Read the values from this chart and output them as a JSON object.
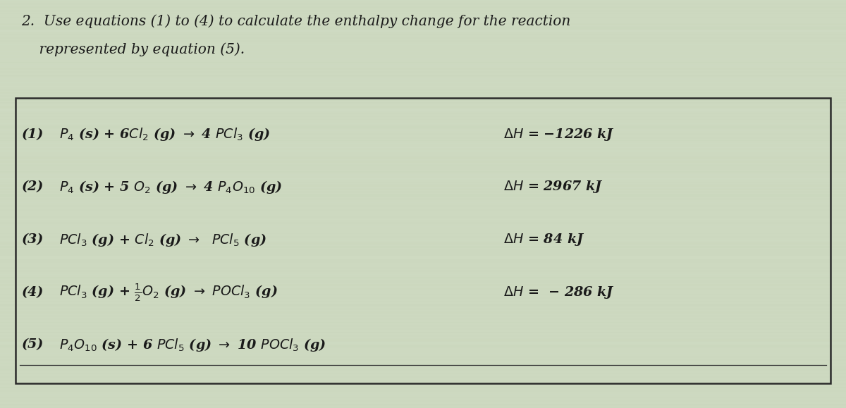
{
  "background_color": "#cdd9c0",
  "title_text_line1": "2.  Use equations (1) to (4) to calculate the enthalpy change for the reaction",
  "title_text_line2": "    represented by equation (5).",
  "title_fontsize": 14.5,
  "box_edge_color": "#2a2a2a",
  "text_color": "#1a1a1a",
  "eq_fontsize": 13.8,
  "equations": [
    {
      "label": "(1)",
      "lhs": "$P_4$ (s) + 6$Cl_2$ (g) $\\rightarrow$ 4 $PCl_3$ (g)",
      "rhs": "$\\Delta H$ = −1226 kJ"
    },
    {
      "label": "(2)",
      "lhs": "$P_4$ (s) + 5 $O_2$ (g) $\\rightarrow$ 4 $P_4O_{10}$ (g)",
      "rhs": "$\\Delta H$ = 2967 kJ"
    },
    {
      "label": "(3)",
      "lhs": "$PCl_3$ (g) + $Cl_2$ (g) $\\rightarrow$  $PCl_5$ (g)",
      "rhs": "$\\Delta H$ = 84 kJ"
    },
    {
      "label": "(4)",
      "lhs": "$PCl_3$ (g) + $\\frac{1}{2}O_2$ (g) $\\rightarrow$ $POCl_3$ (g)",
      "rhs": "$\\Delta H$ =  − 286 kJ"
    },
    {
      "label": "(5)",
      "lhs": "$P_4O_{10}$ (s) + 6 $PCl_5$ (g) $\\rightarrow$ 10 $POCl_3$ (g)",
      "rhs": ""
    }
  ],
  "figsize": [
    12.0,
    5.79
  ],
  "dpi": 100
}
